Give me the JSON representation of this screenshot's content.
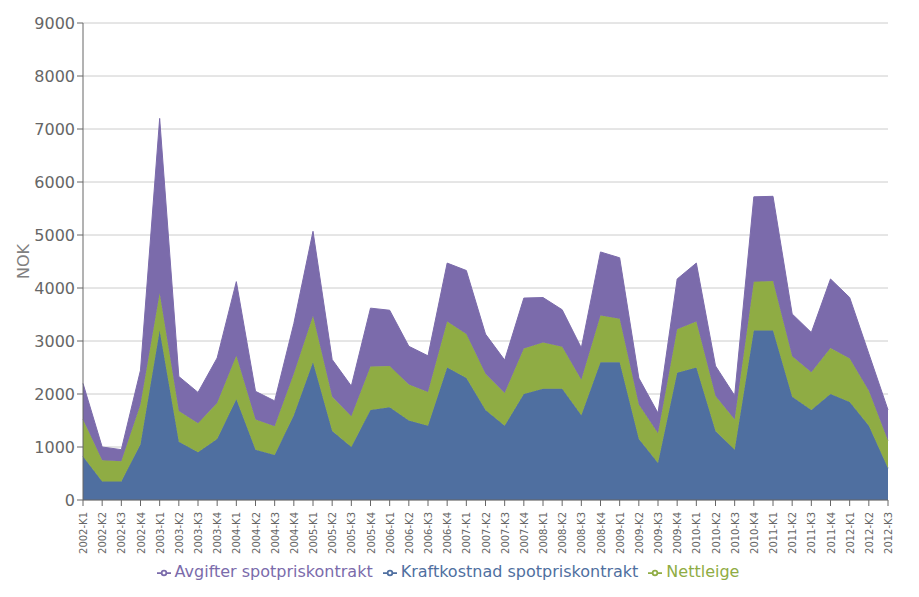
{
  "chart_data": {
    "type": "area",
    "stacked": true,
    "y_label": "NOK",
    "categories": [
      "2002-K1",
      "2002-K2",
      "2002-K3",
      "2002-K4",
      "2003-K1",
      "2003-K2",
      "2003-K3",
      "2003-K4",
      "2004-K1",
      "2004-K2",
      "2004-K3",
      "2004-K4",
      "2005-K1",
      "2005-K2",
      "2005-K3",
      "2005-K4",
      "2006-K1",
      "2006-K2",
      "2006-K3",
      "2006-K4",
      "2007-K1",
      "2007-K2",
      "2007-K3",
      "2007-K4",
      "2008-K1",
      "2008-K2",
      "2008-K3",
      "2008-K4",
      "2009-K1",
      "2009-K2",
      "2009-K3",
      "2009-K4",
      "2010-K1",
      "2010-K2",
      "2010-K3",
      "2010-K4",
      "2011-K1",
      "2011-K2",
      "2011-K3",
      "2011-K4",
      "2012-K1",
      "2012-K2",
      "2012-K3"
    ],
    "series": [
      {
        "name": "Kraftkostnad spotpriskontrakt",
        "color": "#4f6fa0",
        "values": [
          820,
          350,
          350,
          1050,
          3200,
          1100,
          900,
          1150,
          1900,
          950,
          850,
          1600,
          2600,
          1300,
          1000,
          1700,
          1750,
          1500,
          1400,
          2500,
          2300,
          1700,
          1400,
          2000,
          2100,
          2100,
          1600,
          2600,
          2600,
          1150,
          700,
          2400,
          2500,
          1300,
          950,
          3200,
          3200,
          1950,
          1700,
          2000,
          1850,
          1400,
          600
        ]
      },
      {
        "name": "Nettleige",
        "color": "#8fac44",
        "values": [
          700,
          400,
          380,
          750,
          700,
          580,
          550,
          680,
          820,
          570,
          540,
          780,
          870,
          650,
          580,
          820,
          780,
          680,
          640,
          870,
          830,
          680,
          620,
          860,
          870,
          790,
          670,
          880,
          820,
          650,
          560,
          820,
          870,
          660,
          570,
          920,
          930,
          760,
          710,
          870,
          820,
          660,
          520
        ]
      },
      {
        "name": "Avgifter spotpriskontrakt",
        "color": "#7b6bab",
        "values": [
          680,
          250,
          220,
          650,
          3300,
          650,
          580,
          850,
          1400,
          530,
          480,
          950,
          1600,
          700,
          570,
          1100,
          1050,
          720,
          680,
          1100,
          1200,
          750,
          620,
          950,
          850,
          700,
          600,
          1200,
          1150,
          500,
          380,
          950,
          1100,
          570,
          450,
          1600,
          1600,
          800,
          750,
          1300,
          1150,
          700,
          580
        ]
      }
    ],
    "ylim": [
      0,
      9000
    ],
    "yticks": [
      0,
      1000,
      2000,
      3000,
      4000,
      5000,
      6000,
      7000,
      8000,
      9000
    ],
    "grid": true,
    "legend": "bottom"
  }
}
